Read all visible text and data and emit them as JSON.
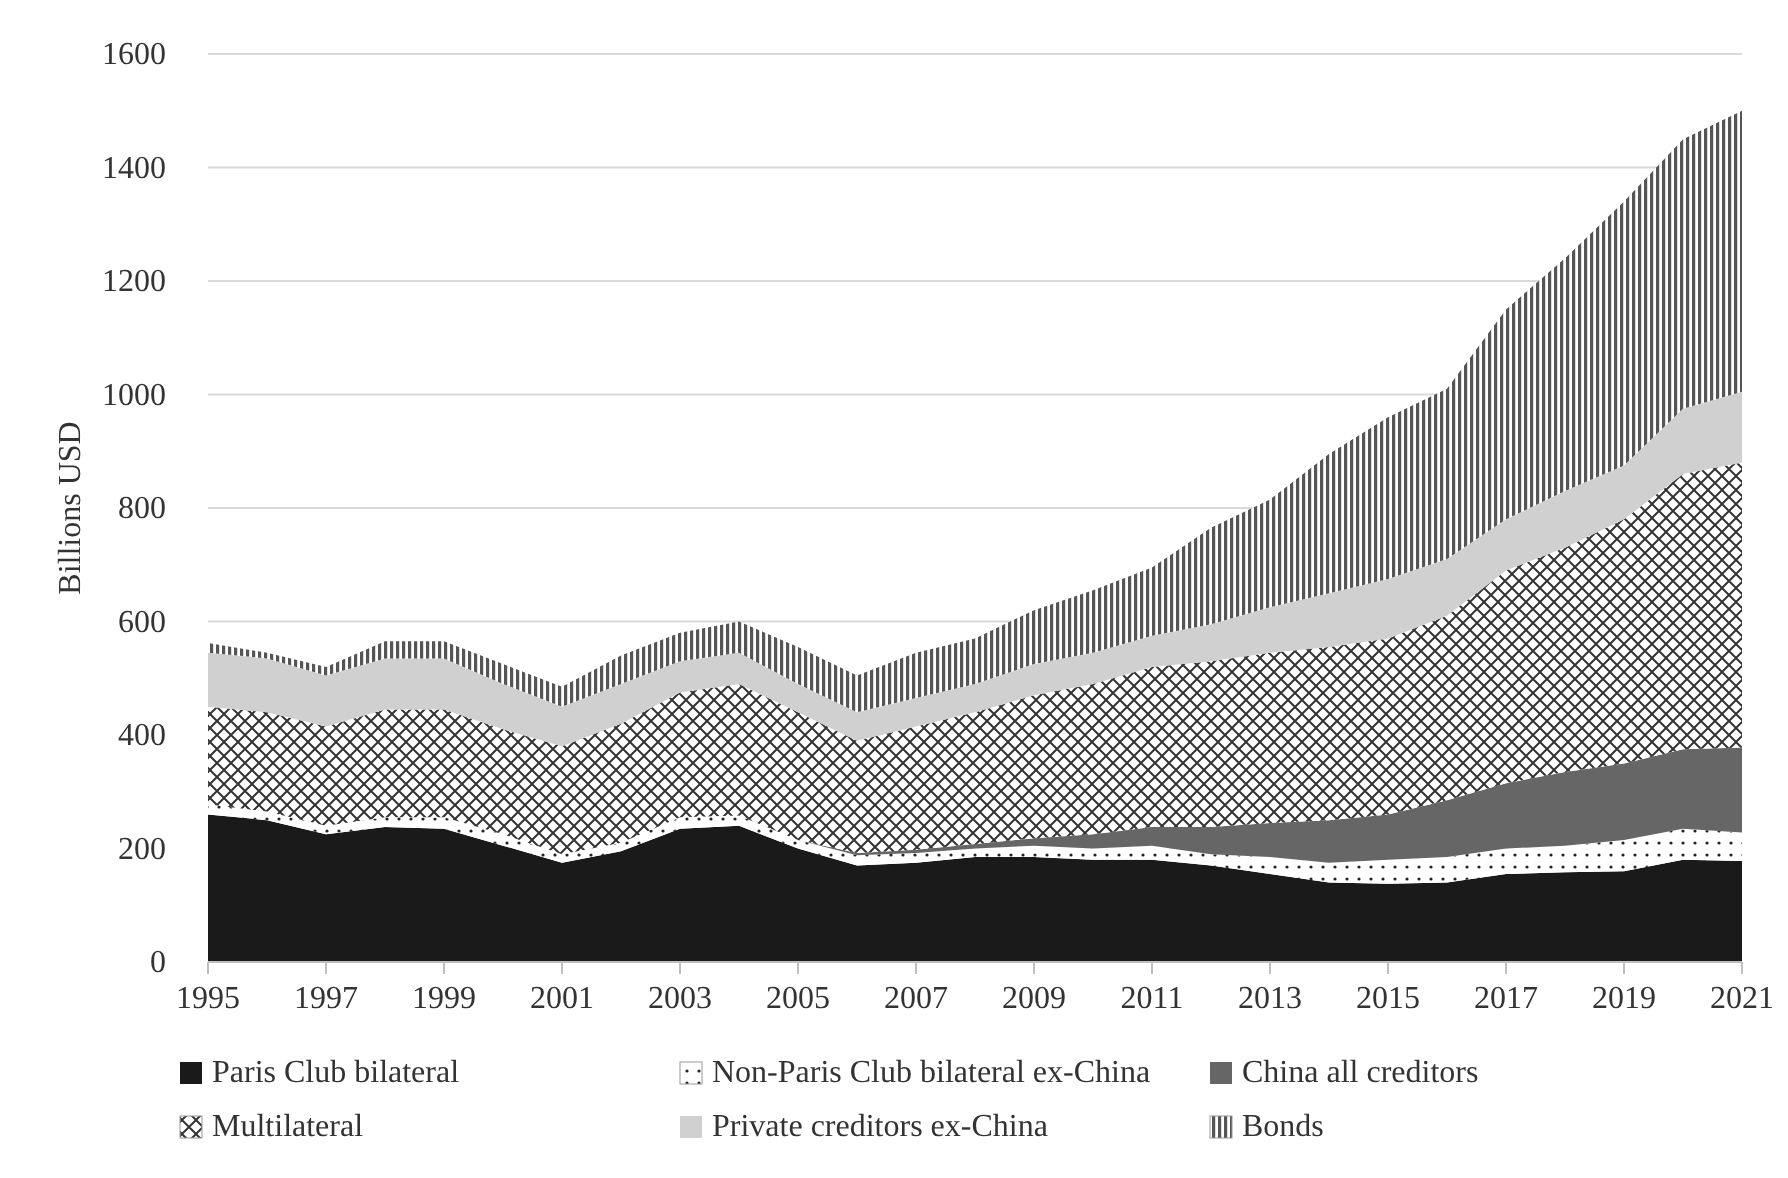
{
  "chart_data": {
    "type": "area",
    "stacked": true,
    "ylabel": "Billions USD",
    "x": [
      1995,
      1996,
      1997,
      1998,
      1999,
      2000,
      2001,
      2002,
      2003,
      2004,
      2005,
      2006,
      2007,
      2008,
      2009,
      2010,
      2011,
      2012,
      2013,
      2014,
      2015,
      2016,
      2017,
      2018,
      2019,
      2020,
      2021
    ],
    "xlim": [
      1995,
      2021
    ],
    "xticks": [
      1995,
      1997,
      1999,
      2001,
      2003,
      2005,
      2007,
      2009,
      2011,
      2013,
      2015,
      2017,
      2019,
      2021
    ],
    "ylim": [
      0,
      1600
    ],
    "yticks": [
      0,
      200,
      400,
      600,
      800,
      1000,
      1200,
      1400,
      1600
    ],
    "grid": "y",
    "legend": "bottom",
    "series": [
      {
        "name": "Paris Club bilateral",
        "color": "#1a1a1a",
        "values": [
          260,
          250,
          225,
          238,
          235,
          205,
          175,
          195,
          235,
          240,
          200,
          170,
          175,
          185,
          185,
          180,
          180,
          170,
          155,
          140,
          138,
          140,
          155,
          158,
          160,
          180,
          178
        ]
      },
      {
        "name": "Non-Paris Club bilateral ex-China",
        "color": "#e8e8e8",
        "values": [
          18,
          15,
          15,
          17,
          20,
          20,
          15,
          15,
          20,
          18,
          15,
          18,
          17,
          15,
          20,
          20,
          25,
          20,
          30,
          35,
          42,
          45,
          45,
          47,
          55,
          55,
          50
        ]
      },
      {
        "name": "China all creditors",
        "color": "#666666",
        "values": [
          0,
          0,
          0,
          0,
          0,
          0,
          0,
          0,
          0,
          0,
          0,
          4,
          6,
          8,
          13,
          25,
          33,
          48,
          60,
          75,
          80,
          100,
          115,
          130,
          135,
          140,
          150
        ]
      },
      {
        "name": "Multilateral",
        "color": "#bbbbbb",
        "values": [
          172,
          175,
          175,
          190,
          190,
          185,
          190,
          210,
          220,
          232,
          225,
          198,
          217,
          232,
          252,
          265,
          282,
          292,
          300,
          305,
          310,
          325,
          375,
          395,
          430,
          485,
          502
        ]
      },
      {
        "name": "Private creditors ex-China",
        "color": "#d0d0d0",
        "values": [
          95,
          95,
          90,
          90,
          90,
          80,
          70,
          70,
          55,
          55,
          50,
          50,
          50,
          50,
          55,
          55,
          55,
          65,
          80,
          95,
          105,
          100,
          90,
          100,
          95,
          115,
          125
        ]
      },
      {
        "name": "Bonds",
        "color": "#555555",
        "values": [
          17,
          10,
          15,
          30,
          30,
          35,
          35,
          50,
          50,
          55,
          65,
          65,
          80,
          80,
          95,
          110,
          120,
          170,
          190,
          245,
          285,
          300,
          370,
          410,
          465,
          475,
          495
        ]
      }
    ]
  }
}
